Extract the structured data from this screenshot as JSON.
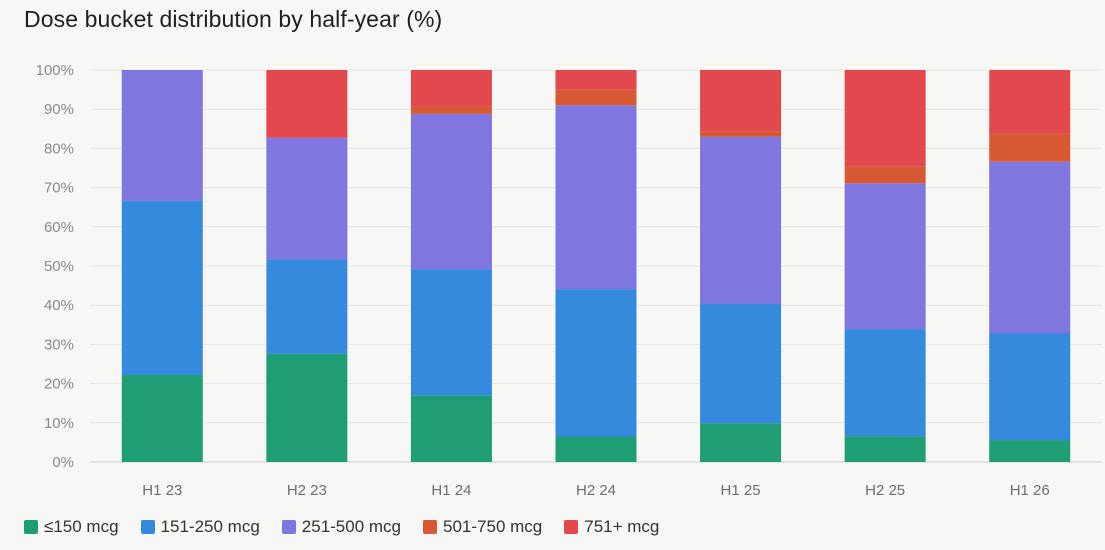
{
  "title": "Dose bucket distribution by half-year (%)",
  "chart_data": {
    "type": "bar",
    "stacked": true,
    "categories": [
      "H1 23",
      "H2 23",
      "H1 24",
      "H2 24",
      "H1 25",
      "H2 25",
      "H1 26"
    ],
    "ylim": [
      0,
      100
    ],
    "yticks": [
      0,
      10,
      20,
      30,
      40,
      50,
      60,
      70,
      80,
      90,
      100
    ],
    "ytick_suffix": "%",
    "grid": true,
    "legend_position": "bottom-left",
    "series": [
      {
        "name": "≤150 mcg",
        "color": "#1e9e74",
        "values": [
          22.2,
          27.6,
          17.0,
          6.5,
          9.9,
          6.6,
          5.6
        ]
      },
      {
        "name": "151-250 mcg",
        "color": "#3589de",
        "values": [
          44.4,
          24.1,
          32.2,
          37.6,
          30.4,
          27.3,
          27.3
        ]
      },
      {
        "name": "251-500 mcg",
        "color": "#7f76df",
        "values": [
          33.4,
          31.0,
          39.6,
          46.9,
          42.7,
          37.2,
          43.7
        ]
      },
      {
        "name": "501-750 mcg",
        "color": "#d85a34",
        "values": [
          0,
          0,
          1.8,
          4.1,
          1.4,
          4.2,
          7.1
        ]
      },
      {
        "name": "751+ mcg",
        "color": "#e2484c",
        "values": [
          0,
          17.3,
          9.4,
          4.9,
          15.6,
          24.7,
          16.3
        ]
      }
    ]
  }
}
